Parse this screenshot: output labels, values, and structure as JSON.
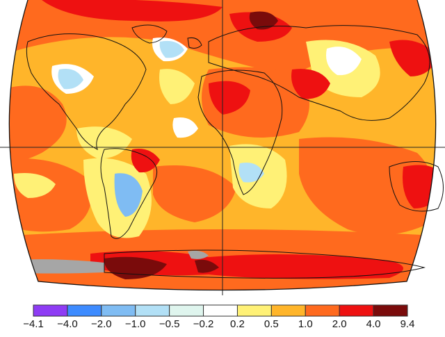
{
  "map": {
    "type": "temperature-anomaly-map",
    "projection": "robinson",
    "colors": {
      "no_data": "#a6a6a6",
      "land_outline": "#111111",
      "grid_line": "#222222",
      "background": "#ffffff"
    }
  },
  "legend": {
    "tick_labels": [
      "−4.1",
      "−4.0",
      "−2.0",
      "−1.0",
      "−0.5",
      "−0.2",
      "0.2",
      "0.5",
      "1.0",
      "2.0",
      "4.0",
      "9.4"
    ],
    "bins": [
      {
        "color": "#8e3cf4"
      },
      {
        "color": "#3d8bff"
      },
      {
        "color": "#7fbcf3"
      },
      {
        "color": "#b2e0f6"
      },
      {
        "color": "#dff5ee"
      },
      {
        "color": "#ffffff"
      },
      {
        "color": "#fff176"
      },
      {
        "color": "#ffb52a"
      },
      {
        "color": "#ff6a1e"
      },
      {
        "color": "#ee1111"
      },
      {
        "color": "#7a0b0b"
      }
    ]
  }
}
